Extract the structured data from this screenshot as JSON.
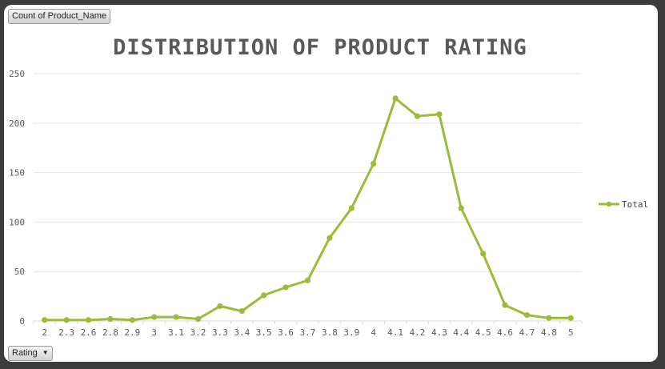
{
  "pivot": {
    "value_field_label": "Count of Product_Name",
    "axis_field_label": "Rating"
  },
  "chart_data": {
    "type": "line",
    "title": "DISTRIBUTION OF PRODUCT RATING",
    "xlabel": "",
    "ylabel": "",
    "categories": [
      "2",
      "2.3",
      "2.6",
      "2.8",
      "2.9",
      "3",
      "3.1",
      "3.2",
      "3.3",
      "3.4",
      "3.5",
      "3.6",
      "3.7",
      "3.8",
      "3.9",
      "4",
      "4.1",
      "4.2",
      "4.3",
      "4.4",
      "4.5",
      "4.6",
      "4.7",
      "4.8",
      "5"
    ],
    "series": [
      {
        "name": "Total",
        "color": "#9bbb3b",
        "values": [
          1,
          1,
          1,
          2,
          1,
          4,
          4,
          2,
          15,
          10,
          26,
          34,
          41,
          84,
          114,
          159,
          225,
          207,
          209,
          114,
          68,
          16,
          6,
          3,
          3
        ]
      }
    ],
    "ylim": [
      0,
      250
    ],
    "yticks": [
      0,
      50,
      100,
      150,
      200,
      250
    ],
    "grid": true,
    "legend_position": "right",
    "line_color": "#9bbb3b",
    "grid_color": "#e6e6e6"
  }
}
